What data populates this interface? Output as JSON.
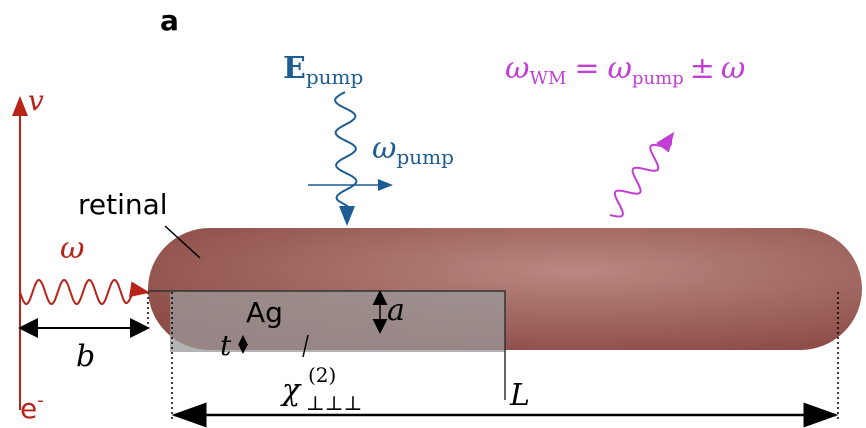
{
  "panel_label": "a",
  "pump_field": {
    "symbol": "E",
    "subscript": "pump"
  },
  "pump_frequency": {
    "symbol": "ω",
    "subscript": "pump"
  },
  "wave_mixing": {
    "lhs": "ω",
    "lhs_subscript": "WM",
    "equals": "=",
    "rhs": "ω",
    "rhs_subscript": "pump",
    "operator": "±",
    "last": "ω"
  },
  "electron_velocity": "v",
  "electron": {
    "symbol": "e",
    "superscript": "-"
  },
  "electron_frequency": "ω",
  "retinal": "retinal",
  "silver": "Ag",
  "thickness_a": "a",
  "thickness_t": "t",
  "impact_parameter": "b",
  "susceptibility": {
    "symbol": "χ",
    "subscript": "⊥⊥⊥",
    "superscript": "(2)"
  },
  "length": "L"
}
